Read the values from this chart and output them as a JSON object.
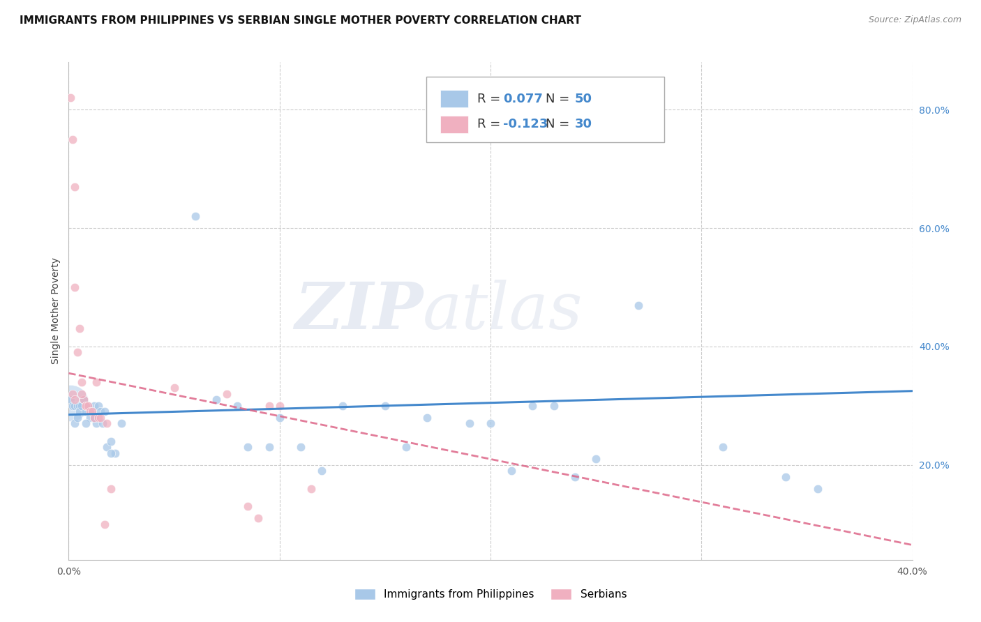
{
  "title": "IMMIGRANTS FROM PHILIPPINES VS SERBIAN SINGLE MOTHER POVERTY CORRELATION CHART",
  "source": "Source: ZipAtlas.com",
  "ylabel": "Single Mother Poverty",
  "xlim": [
    0.0,
    0.4
  ],
  "ylim": [
    0.04,
    0.88
  ],
  "y_ticks_right": [
    0.2,
    0.4,
    0.6,
    0.8
  ],
  "y_tick_labels_right": [
    "20.0%",
    "40.0%",
    "60.0%",
    "80.0%"
  ],
  "blue_color": "#a8c8e8",
  "pink_color": "#f0b0c0",
  "blue_line_color": "#4488cc",
  "pink_line_color": "#dd6688",
  "watermark": "ZIPatlas",
  "blue_scatter_x": [
    0.001,
    0.002,
    0.003,
    0.004,
    0.005,
    0.005,
    0.006,
    0.007,
    0.008,
    0.009,
    0.01,
    0.011,
    0.012,
    0.013,
    0.014,
    0.015,
    0.016,
    0.017,
    0.018,
    0.02,
    0.022,
    0.025,
    0.06,
    0.07,
    0.085,
    0.095,
    0.11,
    0.13,
    0.15,
    0.16,
    0.17,
    0.19,
    0.21,
    0.23,
    0.24,
    0.25,
    0.27,
    0.31,
    0.34,
    0.355,
    0.003,
    0.004,
    0.008,
    0.012,
    0.02,
    0.08,
    0.1,
    0.12,
    0.2,
    0.22
  ],
  "blue_scatter_y": [
    0.31,
    0.3,
    0.3,
    0.3,
    0.3,
    0.29,
    0.3,
    0.31,
    0.29,
    0.3,
    0.28,
    0.29,
    0.3,
    0.27,
    0.3,
    0.29,
    0.27,
    0.29,
    0.23,
    0.24,
    0.22,
    0.27,
    0.62,
    0.31,
    0.23,
    0.23,
    0.23,
    0.3,
    0.3,
    0.23,
    0.28,
    0.27,
    0.19,
    0.3,
    0.18,
    0.21,
    0.47,
    0.23,
    0.18,
    0.16,
    0.27,
    0.28,
    0.27,
    0.28,
    0.22,
    0.3,
    0.28,
    0.19,
    0.27,
    0.3
  ],
  "blue_scatter_size": [
    80,
    80,
    80,
    80,
    80,
    80,
    80,
    80,
    80,
    80,
    80,
    80,
    80,
    80,
    80,
    80,
    80,
    80,
    80,
    80,
    80,
    80,
    80,
    80,
    80,
    80,
    80,
    80,
    80,
    80,
    80,
    80,
    80,
    80,
    80,
    80,
    80,
    80,
    80,
    80,
    80,
    80,
    80,
    80,
    80,
    80,
    80,
    80,
    80,
    80
  ],
  "blue_big_x": [
    0.001
  ],
  "blue_big_y": [
    0.3
  ],
  "blue_big_size": [
    900
  ],
  "pink_scatter_x": [
    0.001,
    0.002,
    0.003,
    0.003,
    0.004,
    0.005,
    0.006,
    0.007,
    0.008,
    0.008,
    0.009,
    0.01,
    0.011,
    0.012,
    0.013,
    0.014,
    0.015,
    0.017,
    0.018,
    0.02,
    0.05,
    0.075,
    0.085,
    0.09,
    0.095,
    0.1,
    0.115,
    0.002,
    0.003,
    0.006
  ],
  "pink_scatter_y": [
    0.82,
    0.75,
    0.67,
    0.5,
    0.39,
    0.43,
    0.34,
    0.31,
    0.3,
    0.3,
    0.3,
    0.29,
    0.29,
    0.28,
    0.34,
    0.28,
    0.28,
    0.1,
    0.27,
    0.16,
    0.33,
    0.32,
    0.13,
    0.11,
    0.3,
    0.3,
    0.16,
    0.32,
    0.31,
    0.32
  ],
  "pink_scatter_size": [
    80,
    80,
    80,
    80,
    80,
    80,
    80,
    80,
    80,
    80,
    80,
    80,
    80,
    80,
    80,
    80,
    80,
    80,
    80,
    80,
    80,
    80,
    80,
    80,
    80,
    80,
    80,
    80,
    80,
    80
  ],
  "blue_line_x": [
    0.0,
    0.4
  ],
  "blue_line_y_start": 0.285,
  "blue_line_y_end": 0.325,
  "pink_line_x": [
    0.0,
    0.4
  ],
  "pink_line_y_start": 0.355,
  "pink_line_y_end": 0.065,
  "bg_color": "#ffffff",
  "grid_color": "#cccccc",
  "title_fontsize": 11,
  "axis_label_fontsize": 10,
  "tick_fontsize": 10
}
